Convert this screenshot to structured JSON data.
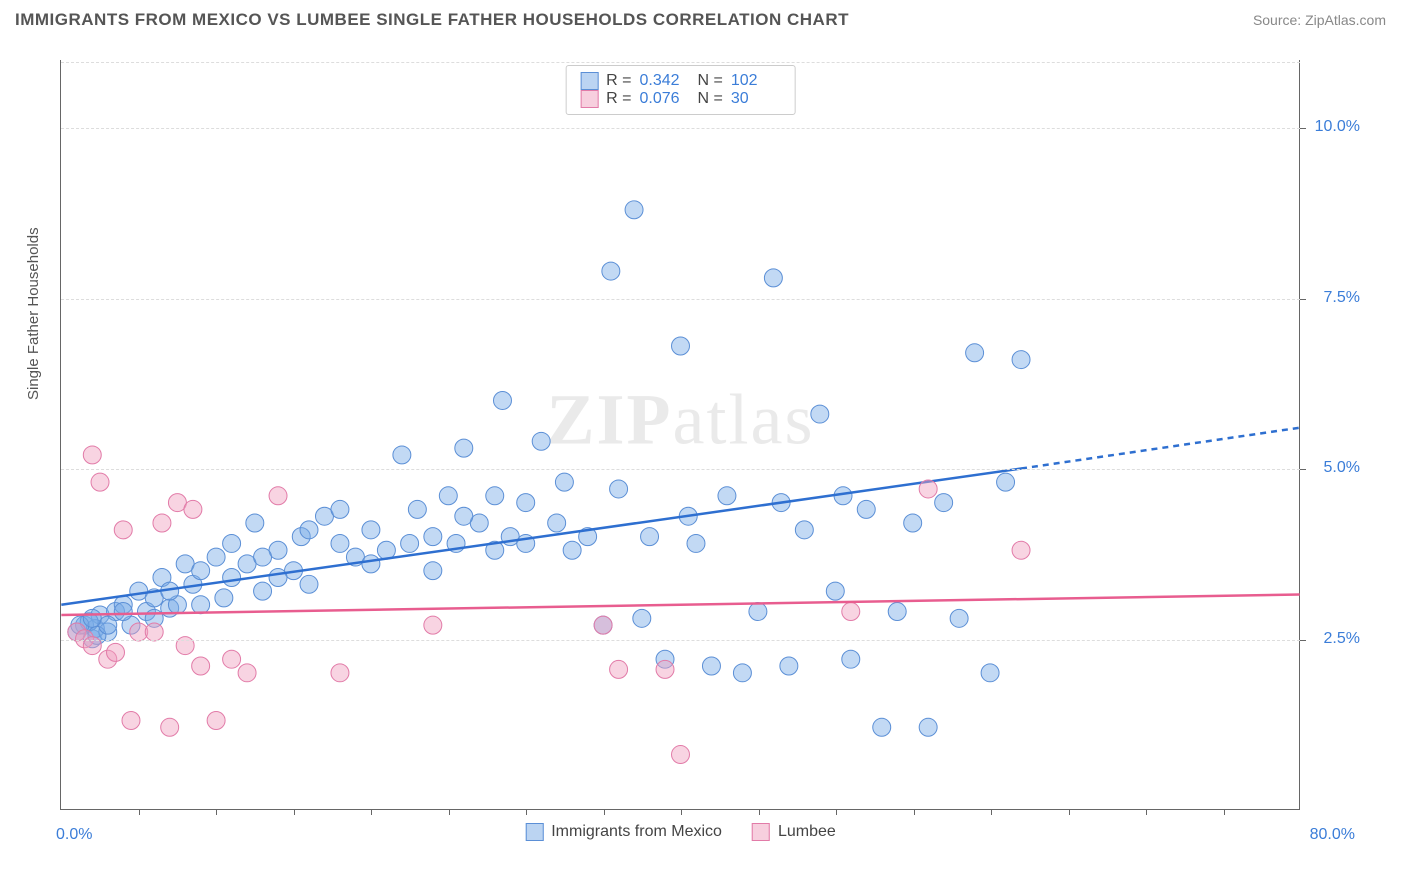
{
  "header": {
    "title": "IMMIGRANTS FROM MEXICO VS LUMBEE SINGLE FATHER HOUSEHOLDS CORRELATION CHART",
    "source_prefix": "Source: ",
    "source_name": "ZipAtlas.com"
  },
  "y_axis_label": "Single Father Households",
  "watermark": {
    "bold": "ZIP",
    "rest": "atlas"
  },
  "chart": {
    "type": "scatter",
    "xlim": [
      0,
      80
    ],
    "ylim": [
      0,
      11
    ],
    "x_tick_labels": {
      "min": "0.0%",
      "max": "80.0%"
    },
    "y_tick_labels": [
      {
        "val": 2.5,
        "text": "2.5%"
      },
      {
        "val": 5.0,
        "text": "5.0%"
      },
      {
        "val": 7.5,
        "text": "7.5%"
      },
      {
        "val": 10.0,
        "text": "10.0%"
      }
    ],
    "x_minor_ticks": [
      5,
      10,
      15,
      20,
      25,
      30,
      35,
      40,
      45,
      50,
      55,
      60,
      65,
      70,
      75
    ],
    "background_color": "#ffffff",
    "grid_color": "#dddddd",
    "series": [
      {
        "name": "Immigrants from Mexico",
        "marker_fill": "rgba(120,170,230,0.45)",
        "marker_stroke": "#5b8fd6",
        "marker_r": 9,
        "line_color": "#2e6fd0",
        "line_width": 2.5,
        "r_value": "0.342",
        "n_value": "102",
        "trend": {
          "x1": 0,
          "y1": 3.0,
          "x2": 62,
          "y2": 5.0,
          "x2_ext": 80,
          "y2_ext": 5.6
        },
        "points": [
          [
            1,
            2.6
          ],
          [
            1.5,
            2.7
          ],
          [
            2,
            2.5
          ],
          [
            2.5,
            2.85
          ],
          [
            2.2,
            2.65
          ],
          [
            3,
            2.6
          ],
          [
            3.5,
            2.9
          ],
          [
            1.8,
            2.75
          ],
          [
            2.3,
            2.55
          ],
          [
            1.2,
            2.7
          ],
          [
            4,
            3.0
          ],
          [
            4.5,
            2.7
          ],
          [
            5,
            3.2
          ],
          [
            5.5,
            2.9
          ],
          [
            6,
            3.1
          ],
          [
            6.5,
            3.4
          ],
          [
            7,
            2.95
          ],
          [
            7.5,
            3.0
          ],
          [
            8,
            3.6
          ],
          [
            8.5,
            3.3
          ],
          [
            9,
            3.5
          ],
          [
            10,
            3.7
          ],
          [
            10.5,
            3.1
          ],
          [
            11,
            3.9
          ],
          [
            12,
            3.6
          ],
          [
            12.5,
            4.2
          ],
          [
            13,
            3.2
          ],
          [
            14,
            3.8
          ],
          [
            15,
            3.5
          ],
          [
            15.5,
            4.0
          ],
          [
            16,
            3.3
          ],
          [
            17,
            4.3
          ],
          [
            18,
            3.9
          ],
          [
            19,
            3.7
          ],
          [
            20,
            4.1
          ],
          [
            21,
            3.8
          ],
          [
            22,
            5.2
          ],
          [
            22.5,
            3.9
          ],
          [
            23,
            4.4
          ],
          [
            24,
            4.0
          ],
          [
            25,
            4.6
          ],
          [
            25.5,
            3.9
          ],
          [
            26,
            5.3
          ],
          [
            27,
            4.2
          ],
          [
            28,
            3.8
          ],
          [
            28.5,
            6.0
          ],
          [
            29,
            4.0
          ],
          [
            30,
            4.5
          ],
          [
            31,
            5.4
          ],
          [
            32,
            4.2
          ],
          [
            32.5,
            4.8
          ],
          [
            33,
            3.8
          ],
          [
            34,
            4.0
          ],
          [
            35,
            2.7
          ],
          [
            35.5,
            7.9
          ],
          [
            36,
            4.7
          ],
          [
            37,
            8.8
          ],
          [
            37.5,
            2.8
          ],
          [
            38,
            4.0
          ],
          [
            39,
            2.2
          ],
          [
            40,
            6.8
          ],
          [
            40.5,
            4.3
          ],
          [
            41,
            3.9
          ],
          [
            42,
            2.1
          ],
          [
            43,
            4.6
          ],
          [
            44,
            2.0
          ],
          [
            45,
            2.9
          ],
          [
            46,
            7.8
          ],
          [
            46.5,
            4.5
          ],
          [
            47,
            2.1
          ],
          [
            48,
            4.1
          ],
          [
            49,
            5.8
          ],
          [
            50,
            3.2
          ],
          [
            50.5,
            4.6
          ],
          [
            51,
            2.2
          ],
          [
            52,
            4.4
          ],
          [
            53,
            1.2
          ],
          [
            54,
            2.9
          ],
          [
            55,
            4.2
          ],
          [
            56,
            1.2
          ],
          [
            57,
            4.5
          ],
          [
            58,
            2.8
          ],
          [
            59,
            6.7
          ],
          [
            60,
            2.0
          ],
          [
            61,
            4.8
          ],
          [
            62,
            6.6
          ],
          [
            24,
            3.5
          ],
          [
            26,
            4.3
          ],
          [
            28,
            4.6
          ],
          [
            30,
            3.9
          ],
          [
            18,
            4.4
          ],
          [
            20,
            3.6
          ],
          [
            14,
            3.4
          ],
          [
            16,
            4.1
          ],
          [
            9,
            3.0
          ],
          [
            11,
            3.4
          ],
          [
            13,
            3.7
          ],
          [
            6,
            2.8
          ],
          [
            7,
            3.2
          ],
          [
            4,
            2.9
          ],
          [
            3,
            2.7
          ],
          [
            2,
            2.8
          ]
        ]
      },
      {
        "name": "Lumbee",
        "marker_fill": "rgba(240,160,190,0.45)",
        "marker_stroke": "#e27ba8",
        "marker_r": 9,
        "line_color": "#e85d8f",
        "line_width": 2.5,
        "r_value": "0.076",
        "n_value": "30",
        "trend": {
          "x1": 0,
          "y1": 2.85,
          "x2": 80,
          "y2": 3.15
        },
        "points": [
          [
            1,
            2.6
          ],
          [
            1.5,
            2.5
          ],
          [
            2,
            2.4
          ],
          [
            2,
            5.2
          ],
          [
            2.5,
            4.8
          ],
          [
            3,
            2.2
          ],
          [
            3.5,
            2.3
          ],
          [
            4,
            4.1
          ],
          [
            4.5,
            1.3
          ],
          [
            5,
            2.6
          ],
          [
            6,
            2.6
          ],
          [
            6.5,
            4.2
          ],
          [
            7,
            1.2
          ],
          [
            7.5,
            4.5
          ],
          [
            8,
            2.4
          ],
          [
            8.5,
            4.4
          ],
          [
            9,
            2.1
          ],
          [
            10,
            1.3
          ],
          [
            11,
            2.2
          ],
          [
            12,
            2.0
          ],
          [
            14,
            4.6
          ],
          [
            18,
            2.0
          ],
          [
            24,
            2.7
          ],
          [
            35,
            2.7
          ],
          [
            36,
            2.05
          ],
          [
            39,
            2.05
          ],
          [
            51,
            2.9
          ],
          [
            56,
            4.7
          ],
          [
            62,
            3.8
          ],
          [
            40,
            0.8
          ]
        ]
      }
    ]
  },
  "legend": {
    "items": [
      {
        "label": "Immigrants from Mexico",
        "sw": "sw-blue"
      },
      {
        "label": "Lumbee",
        "sw": "sw-pink"
      }
    ]
  }
}
